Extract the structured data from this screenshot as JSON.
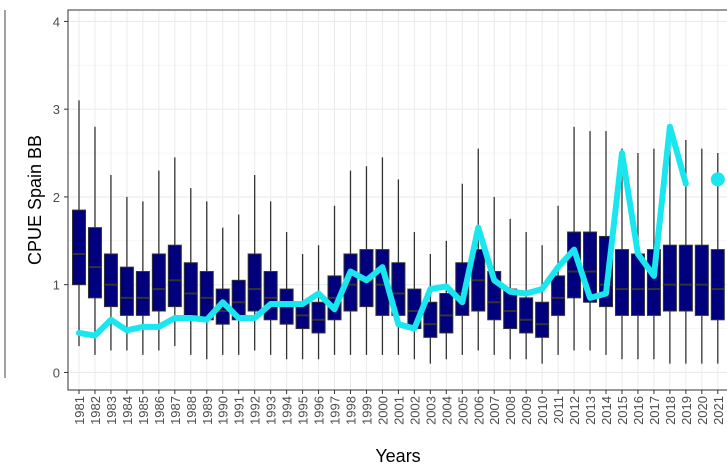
{
  "chart_data": {
    "type": "boxplot",
    "x_label": "Years",
    "y_label": "CPUE Spain BB",
    "categories": [
      "1981",
      "1982",
      "1983",
      "1984",
      "1985",
      "1986",
      "1987",
      "1988",
      "1989",
      "1990",
      "1991",
      "1992",
      "1993",
      "1994",
      "1995",
      "1996",
      "1997",
      "1998",
      "1999",
      "2000",
      "2001",
      "2002",
      "2003",
      "2004",
      "2005",
      "2006",
      "2007",
      "2008",
      "2009",
      "2010",
      "2011",
      "2012",
      "2013",
      "2014",
      "2015",
      "2016",
      "2017",
      "2018",
      "2019",
      "2020",
      "2021"
    ],
    "box_color": "#00007f",
    "box_border": "#333333",
    "low": [
      0.3,
      0.2,
      0.25,
      0.25,
      0.2,
      0.25,
      0.3,
      0.2,
      0.15,
      0.2,
      0.2,
      0.25,
      0.2,
      0.15,
      0.15,
      0.15,
      0.2,
      0.2,
      0.2,
      0.2,
      0.2,
      0.15,
      0.1,
      0.15,
      0.2,
      0.25,
      0.2,
      0.15,
      0.15,
      0.1,
      0.2,
      0.25,
      0.25,
      0.2,
      0.15,
      0.15,
      0.15,
      0.1,
      0.1,
      0.1,
      0.1
    ],
    "q1": [
      1.0,
      0.85,
      0.75,
      0.65,
      0.65,
      0.7,
      0.75,
      0.65,
      0.6,
      0.55,
      0.6,
      0.7,
      0.6,
      0.55,
      0.5,
      0.45,
      0.6,
      0.7,
      0.75,
      0.65,
      0.65,
      0.5,
      0.4,
      0.45,
      0.65,
      0.7,
      0.6,
      0.5,
      0.45,
      0.4,
      0.65,
      0.85,
      0.8,
      0.75,
      0.65,
      0.65,
      0.65,
      0.7,
      0.7,
      0.65,
      0.6
    ],
    "median": [
      1.35,
      1.2,
      1.0,
      0.85,
      0.85,
      0.95,
      1.05,
      0.9,
      0.85,
      0.7,
      0.8,
      0.95,
      0.85,
      0.75,
      0.65,
      0.6,
      0.85,
      1.0,
      1.05,
      1.0,
      0.9,
      0.7,
      0.55,
      0.65,
      0.9,
      1.05,
      0.8,
      0.7,
      0.6,
      0.55,
      0.85,
      1.15,
      1.15,
      1.0,
      0.95,
      0.95,
      0.95,
      1.0,
      1.0,
      1.0,
      0.95
    ],
    "q3": [
      1.85,
      1.65,
      1.35,
      1.2,
      1.15,
      1.35,
      1.45,
      1.25,
      1.15,
      0.95,
      1.05,
      1.35,
      1.15,
      0.95,
      0.8,
      0.8,
      1.1,
      1.35,
      1.4,
      1.4,
      1.25,
      0.95,
      0.8,
      0.9,
      1.25,
      1.4,
      1.15,
      0.95,
      0.85,
      0.8,
      1.1,
      1.6,
      1.6,
      1.55,
      1.4,
      1.35,
      1.4,
      1.45,
      1.45,
      1.45,
      1.4
    ],
    "high": [
      3.1,
      2.8,
      2.25,
      2.0,
      1.95,
      2.3,
      2.45,
      2.1,
      1.95,
      1.65,
      1.8,
      2.25,
      1.95,
      1.6,
      1.35,
      1.45,
      1.9,
      2.3,
      2.35,
      2.45,
      2.2,
      1.6,
      1.35,
      1.5,
      2.15,
      2.55,
      2.0,
      1.75,
      1.6,
      1.45,
      1.9,
      2.8,
      2.75,
      2.75,
      2.55,
      2.5,
      2.55,
      2.6,
      2.65,
      2.55,
      2.5
    ],
    "line": {
      "color": "#19e6ef",
      "values": [
        0.45,
        0.42,
        0.6,
        0.48,
        0.52,
        0.52,
        0.62,
        0.62,
        0.6,
        0.8,
        0.62,
        0.62,
        0.78,
        0.78,
        0.78,
        0.9,
        0.72,
        1.15,
        1.05,
        1.2,
        0.55,
        0.5,
        0.95,
        0.98,
        0.8,
        1.65,
        1.05,
        0.92,
        0.9,
        0.95,
        1.2,
        1.4,
        0.85,
        0.9,
        2.5,
        1.35,
        1.1,
        2.8,
        2.15,
        null,
        2.2
      ]
    },
    "ylim": [
      -0.2,
      4.13
    ],
    "yticks": [
      0,
      1,
      2,
      3,
      4
    ],
    "grid": true
  }
}
